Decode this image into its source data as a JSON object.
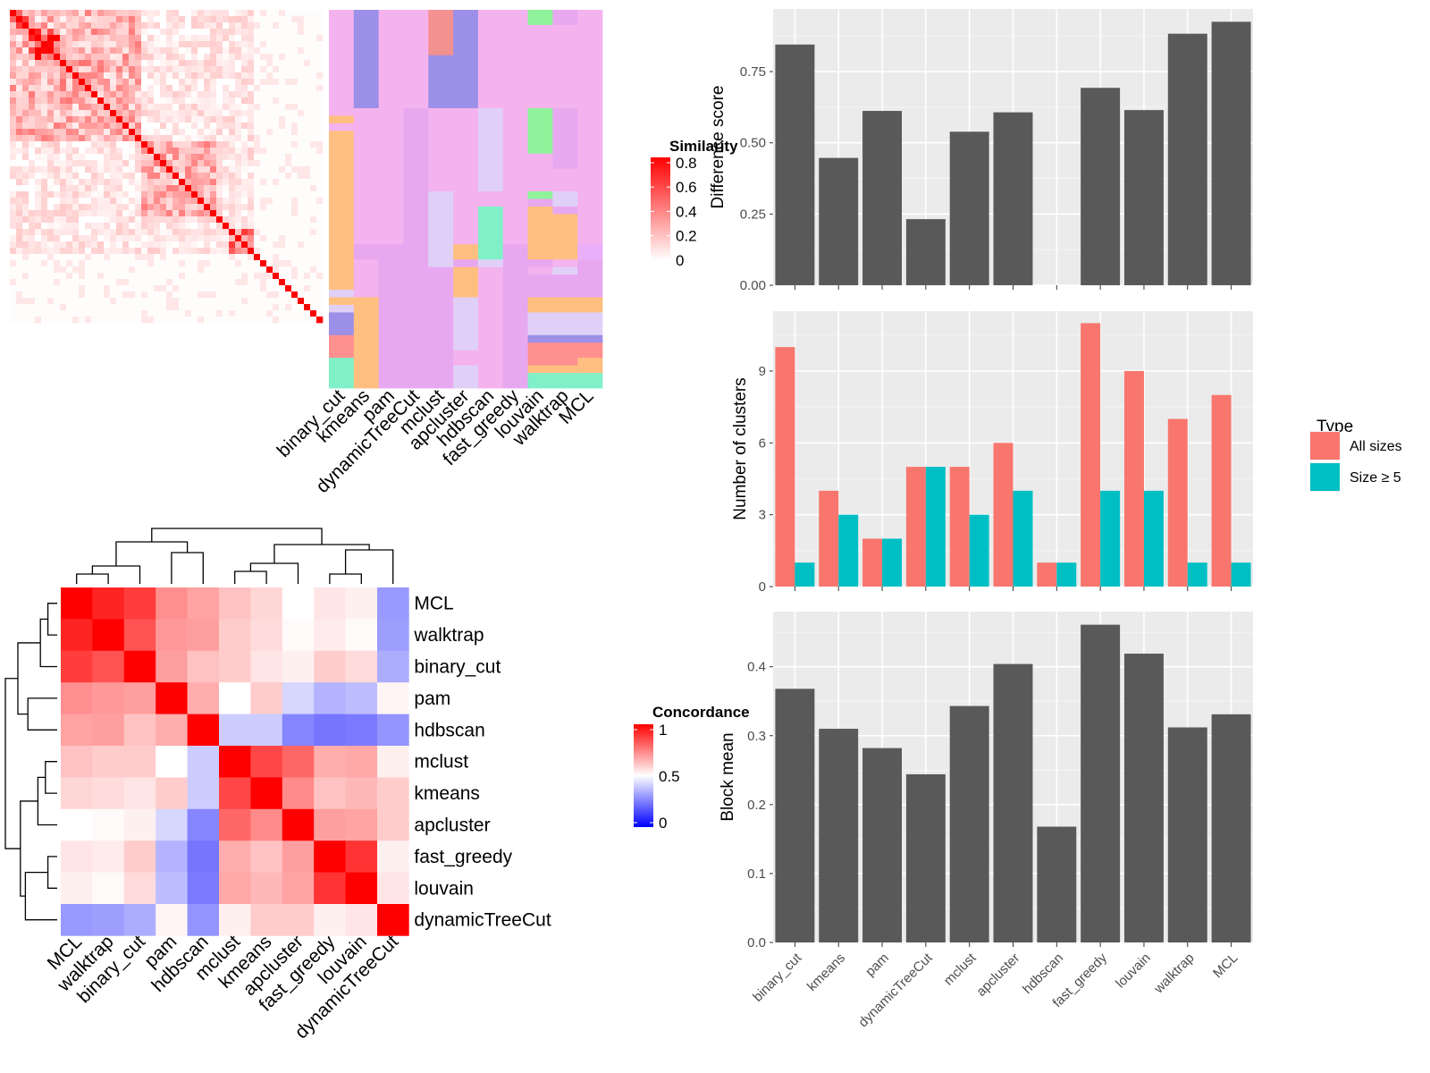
{
  "chart_data": [
    {
      "type": "heatmap",
      "panel": "similarity-heatmap",
      "legend_title": "Similarity",
      "legend_ticks": [
        "0.8",
        "0.6",
        "0.4",
        "0.2",
        "0"
      ],
      "colors": {
        "low": "#ffffff",
        "high": "#ff0000"
      },
      "n_items": 50,
      "blocks": [
        {
          "start": 0,
          "end": 3,
          "within": 0.55
        },
        {
          "start": 3,
          "end": 8,
          "within": 0.65
        },
        {
          "start": 8,
          "end": 15,
          "within": 0.35
        },
        {
          "start": 15,
          "end": 21,
          "within": 0.3
        },
        {
          "start": 21,
          "end": 33,
          "within": 0.3
        },
        {
          "start": 33,
          "end": 35,
          "within": 0.15
        },
        {
          "start": 35,
          "end": 39,
          "within": 0.45
        },
        {
          "start": 39,
          "end": 50,
          "within": 0.05
        }
      ],
      "between_blocks": 0.12
    },
    {
      "type": "heatmap",
      "panel": "cluster-membership",
      "columns": [
        "binary_cut",
        "kmeans",
        "pam",
        "dynamicTreeCut",
        "mclust",
        "apcluster",
        "hdbscan",
        "fast_greedy",
        "louvain",
        "walktrap",
        "MCL"
      ],
      "n_rows": 50,
      "palette": {
        "1": "#f4b3ee",
        "2": "#9b8fe8",
        "3": "#f39090",
        "4": "#ffbf80",
        "5": "#e0d0f8",
        "6": "#90f29a",
        "7": "#e8a8f0",
        "8": "#80f0c8",
        "9": "#f2a0ee",
        "10": "#ff9090",
        "11": "#eaaffa"
      }
    },
    {
      "type": "heatmap",
      "panel": "concordance-heatmap",
      "legend_title": "Concordance",
      "legend_ticks": [
        "1",
        "0.5",
        "0"
      ],
      "colors": {
        "low": "#0000ff",
        "mid": "#ffffff",
        "high": "#ff0000"
      },
      "labels": [
        "MCL",
        "walktrap",
        "binary_cut",
        "pam",
        "hdbscan",
        "mclust",
        "kmeans",
        "apcluster",
        "fast_greedy",
        "louvain",
        "dynamicTreeCut"
      ],
      "matrix": [
        [
          1.0,
          0.93,
          0.88,
          0.72,
          0.68,
          0.62,
          0.58,
          0.5,
          0.55,
          0.53,
          0.3
        ],
        [
          0.93,
          1.0,
          0.84,
          0.7,
          0.69,
          0.6,
          0.57,
          0.51,
          0.54,
          0.51,
          0.31
        ],
        [
          0.88,
          0.84,
          1.0,
          0.69,
          0.62,
          0.6,
          0.55,
          0.53,
          0.6,
          0.57,
          0.34
        ],
        [
          0.72,
          0.7,
          0.69,
          1.0,
          0.66,
          0.5,
          0.6,
          0.42,
          0.35,
          0.37,
          0.52
        ],
        [
          0.68,
          0.69,
          0.62,
          0.66,
          1.0,
          0.4,
          0.4,
          0.26,
          0.23,
          0.24,
          0.29
        ],
        [
          0.62,
          0.6,
          0.6,
          0.5,
          0.4,
          1.0,
          0.86,
          0.8,
          0.66,
          0.67,
          0.53
        ],
        [
          0.58,
          0.57,
          0.55,
          0.6,
          0.4,
          0.86,
          1.0,
          0.73,
          0.62,
          0.64,
          0.6
        ],
        [
          0.5,
          0.51,
          0.53,
          0.42,
          0.26,
          0.8,
          0.73,
          1.0,
          0.69,
          0.68,
          0.6
        ],
        [
          0.55,
          0.54,
          0.6,
          0.35,
          0.23,
          0.66,
          0.62,
          0.69,
          1.0,
          0.9,
          0.53
        ],
        [
          0.53,
          0.51,
          0.57,
          0.37,
          0.24,
          0.67,
          0.64,
          0.68,
          0.9,
          1.0,
          0.55
        ],
        [
          0.3,
          0.31,
          0.34,
          0.52,
          0.29,
          0.53,
          0.6,
          0.6,
          0.53,
          0.55,
          1.0
        ]
      ]
    },
    {
      "type": "bar",
      "panel": "difference-score",
      "categories": [
        "binary_cut",
        "kmeans",
        "pam",
        "dynamicTreeCut",
        "mclust",
        "apcluster",
        "hdbscan",
        "fast_greedy",
        "louvain",
        "walktrap",
        "MCL"
      ],
      "values": [
        0.845,
        0.447,
        0.612,
        0.232,
        0.539,
        0.607,
        null,
        0.693,
        0.615,
        0.883,
        0.925
      ],
      "ylabel": "Difference score",
      "yticks": [
        "0.00",
        "0.25",
        "0.50",
        "0.75"
      ],
      "ylim": [
        0,
        0.97
      ],
      "bar_color": "#595959"
    },
    {
      "type": "bar",
      "panel": "number-of-clusters",
      "categories": [
        "binary_cut",
        "kmeans",
        "pam",
        "dynamicTreeCut",
        "mclust",
        "apcluster",
        "hdbscan",
        "fast_greedy",
        "louvain",
        "walktrap",
        "MCL"
      ],
      "series": [
        {
          "name": "All sizes",
          "color": "#f8766d",
          "values": [
            10,
            4,
            2,
            5,
            5,
            6,
            1,
            11,
            9,
            7,
            8
          ]
        },
        {
          "name": "Size ≥ 5",
          "color": "#00bfc4",
          "values": [
            1,
            3,
            2,
            5,
            3,
            4,
            1,
            4,
            4,
            1,
            1
          ]
        }
      ],
      "ylabel": "Number of clusters",
      "yticks": [
        "0",
        "3",
        "6",
        "9"
      ],
      "ylim": [
        0,
        11.5
      ],
      "legend_title": "Type",
      "legend_position": "right"
    },
    {
      "type": "bar",
      "panel": "block-mean",
      "categories": [
        "binary_cut",
        "kmeans",
        "pam",
        "dynamicTreeCut",
        "mclust",
        "apcluster",
        "hdbscan",
        "fast_greedy",
        "louvain",
        "walktrap",
        "MCL"
      ],
      "values": [
        0.368,
        0.31,
        0.282,
        0.244,
        0.343,
        0.404,
        0.168,
        0.461,
        0.419,
        0.312,
        0.331
      ],
      "ylabel": "Block mean",
      "yticks": [
        "0.0",
        "0.1",
        "0.2",
        "0.3",
        "0.4"
      ],
      "ylim": [
        0,
        0.48
      ],
      "bar_color": "#595959"
    }
  ]
}
